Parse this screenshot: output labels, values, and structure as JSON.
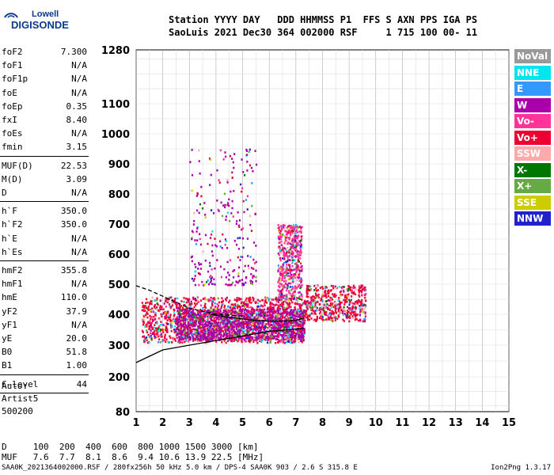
{
  "logo": {
    "top": "Lowell",
    "main": "DIGISONDE"
  },
  "header": {
    "line1": "Station YYYY DAY   DDD HHMMSS P1  FFS S AXN PPS IGA PS",
    "line2": "SaoLuis 2021 Dec30 364 002000 RSF     1 715 100 00- 11"
  },
  "params": [
    {
      "k": "foF2",
      "v": "7.300"
    },
    {
      "k": "foF1",
      "v": "N/A"
    },
    {
      "k": "foF1p",
      "v": "N/A"
    },
    {
      "k": "foE",
      "v": "N/A"
    },
    {
      "k": "foEp",
      "v": "0.35"
    },
    {
      "k": "fxI",
      "v": "8.40"
    },
    {
      "k": "foEs",
      "v": "N/A"
    },
    {
      "k": "fmin",
      "v": "3.15"
    },
    {
      "k": "MUF(D)",
      "v": "22.53"
    },
    {
      "k": "M(D)",
      "v": "3.09"
    },
    {
      "k": "D",
      "v": "N/A"
    },
    {
      "k": "h`F",
      "v": "350.0"
    },
    {
      "k": "h`F2",
      "v": "350.0"
    },
    {
      "k": "h`E",
      "v": "N/A"
    },
    {
      "k": "h`Es",
      "v": "N/A"
    },
    {
      "k": "hmF2",
      "v": "355.8"
    },
    {
      "k": "hmF1",
      "v": "N/A"
    },
    {
      "k": "hmE",
      "v": "110.0"
    },
    {
      "k": "yF2",
      "v": "37.9"
    },
    {
      "k": "yF1",
      "v": "N/A"
    },
    {
      "k": "yE",
      "v": "20.0"
    },
    {
      "k": "B0",
      "v": "51.8"
    },
    {
      "k": "B1",
      "v": "1.00"
    },
    {
      "k": "C-level",
      "v": "44"
    }
  ],
  "auto": [
    "Auto:",
    "Artist5",
    "500200"
  ],
  "legend": [
    {
      "label": "NoVal",
      "color": "#999999"
    },
    {
      "label": "NNE",
      "color": "#00e5ee"
    },
    {
      "label": "E",
      "color": "#3399ff"
    },
    {
      "label": "W",
      "color": "#aa00aa"
    },
    {
      "label": "Vo-",
      "color": "#ff3399"
    },
    {
      "label": "Vo+",
      "color": "#ee0033"
    },
    {
      "label": "SSW",
      "color": "#ffaaaa"
    },
    {
      "label": "X-",
      "color": "#007700"
    },
    {
      "label": "X+",
      "color": "#66aa44"
    },
    {
      "label": "SSE",
      "color": "#cccc00"
    },
    {
      "label": "NNW",
      "color": "#2222cc"
    }
  ],
  "bottom": {
    "d_line": "D     100  200  400  600  800 1000 1500 3000 [km]",
    "muf_line": "MUF   7.6  7.7  8.1  8.6  9.4 10.6 13.9 22.5 [MHz]"
  },
  "footer": {
    "left": "SAA0K_2021364002000.RSF / 280fx256h 50 kHz 5.0 km / DPS-4 SAA0K 903 / 2.6 S 315.8 E",
    "right": "Ion2Png 1.3.17"
  },
  "chart_data": {
    "type": "scatter",
    "title": "",
    "xlabel": "",
    "ylabel": "",
    "xlim": [
      1,
      15
    ],
    "ylim": [
      80,
      1280
    ],
    "xticks": [
      1,
      2,
      3,
      4,
      5,
      6,
      7,
      8,
      9,
      10,
      11,
      12,
      13,
      14,
      15
    ],
    "yticks": [
      80,
      200,
      300,
      400,
      500,
      600,
      700,
      800,
      900,
      1000,
      1100,
      1280
    ],
    "grid": true,
    "legend_position": "right",
    "clusters": [
      {
        "x_range": [
          1.2,
          7.3
        ],
        "y_range": [
          310,
          460
        ],
        "density": "high",
        "series": "Vo+"
      },
      {
        "x_range": [
          2.5,
          7.3
        ],
        "y_range": [
          320,
          420
        ],
        "density": "high",
        "series": "W"
      },
      {
        "x_range": [
          7.3,
          9.6
        ],
        "y_range": [
          380,
          500
        ],
        "density": "medium",
        "series": "Vo+"
      },
      {
        "x_range": [
          3.0,
          5.5
        ],
        "y_range": [
          500,
          960
        ],
        "density": "low",
        "series": "W"
      },
      {
        "x_range": [
          6.3,
          7.2
        ],
        "y_range": [
          450,
          700
        ],
        "density": "medium",
        "series": "Vo-"
      }
    ],
    "curves": [
      {
        "name": "profile",
        "color": "#000000",
        "x": [
          1.0,
          1.5,
          2.0,
          3.0,
          4.0,
          5.0,
          6.0,
          7.0,
          7.3
        ],
        "y": [
          245,
          265,
          285,
          300,
          315,
          330,
          345,
          352,
          355
        ]
      },
      {
        "name": "trace-dashed",
        "color": "#000000",
        "dashed": true,
        "x": [
          1.0,
          1.5,
          2.0,
          2.5,
          3.0,
          3.5,
          4.0,
          5.0
        ],
        "y": [
          495,
          480,
          460,
          440,
          420,
          410,
          400,
          395
        ]
      },
      {
        "name": "trace-O",
        "color": "#000000",
        "x": [
          3.8,
          4.5,
          5.0,
          5.5,
          6.0,
          6.5,
          7.0,
          7.3
        ],
        "y": [
          400,
          390,
          385,
          380,
          378,
          378,
          380,
          388
        ]
      }
    ]
  }
}
